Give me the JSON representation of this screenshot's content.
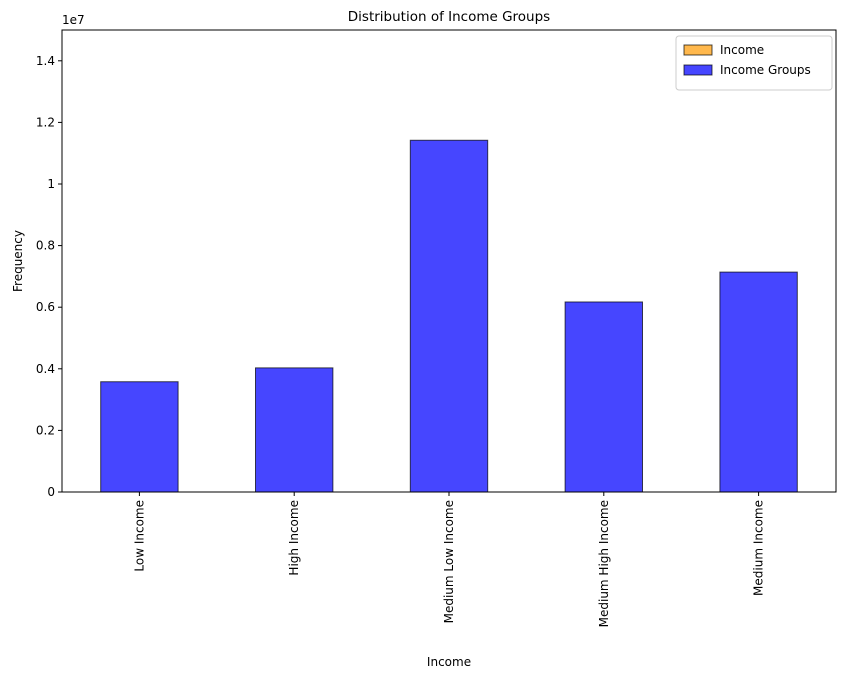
{
  "chart_data": {
    "type": "bar",
    "title": "Distribution of Income Groups",
    "x_label": "Income",
    "y_label": "Frequency",
    "y_offset_label": "1e7",
    "categories": [
      "Low Income",
      "High Income",
      "Medium Low Income",
      "Medium High Income",
      "Medium Income"
    ],
    "series": [
      {
        "name": "Income",
        "color": "#ffb84d",
        "values": [
          null,
          null,
          null,
          null,
          null
        ]
      },
      {
        "name": "Income Groups",
        "color": "#4646ff",
        "values": [
          0.358,
          0.403,
          1.142,
          0.617,
          0.714
        ]
      }
    ],
    "ylim": [
      0,
      1.5
    ],
    "yticks": [
      0,
      0.2,
      0.4,
      0.6,
      0.8,
      1.0,
      1.2,
      1.4
    ],
    "legend": "upper right",
    "grid": false
  }
}
